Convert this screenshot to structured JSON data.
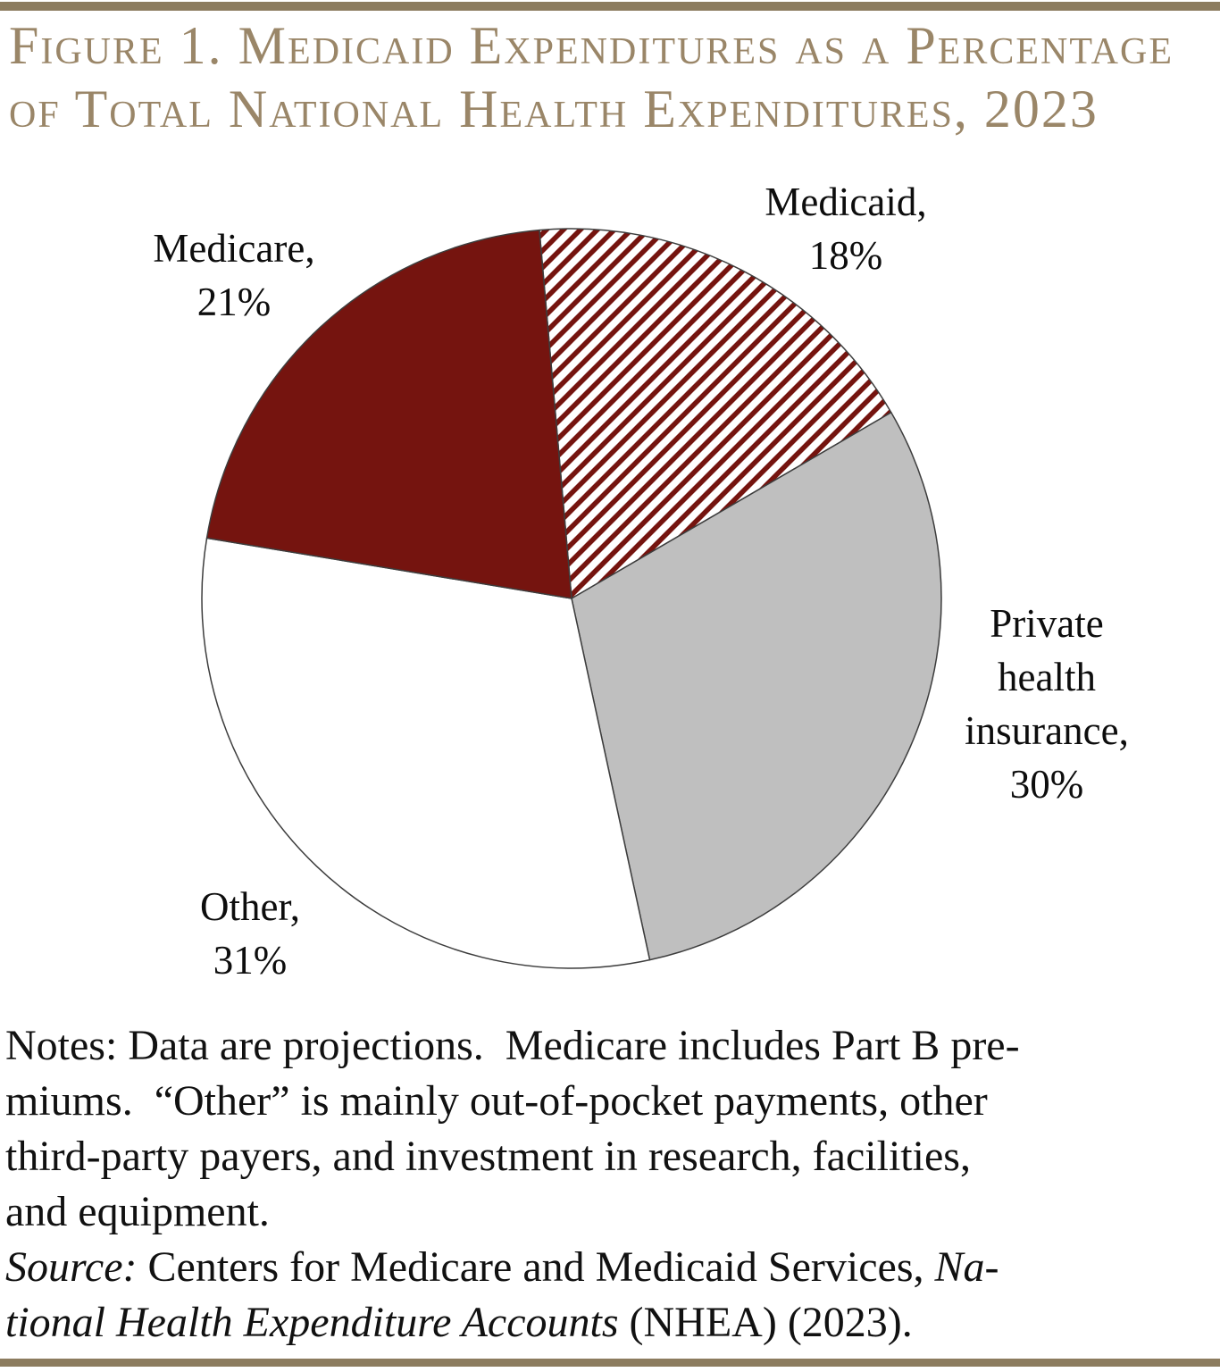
{
  "page": {
    "top_bar_color": "#8c7c5f",
    "bottom_bar_color": "#8c7c5f",
    "background_color": "#ffffff"
  },
  "title": {
    "text": "Figure 1. Medicaid Expenditures as a Percentage of Total National Health Expenditures, 2023",
    "lines": [
      "Figure 1. Medicaid Expenditures as a Percentage",
      "of Total National Health Expenditures, 2023"
    ],
    "color": "#9a8668"
  },
  "chart_data": {
    "type": "pie",
    "title": "Figure 1. Medicaid Expenditures as a Percentage of Total National Health Expenditures, 2023",
    "categories": [
      "Medicaid",
      "Private health insurance",
      "Other",
      "Medicare"
    ],
    "values": [
      18,
      30,
      31,
      21
    ],
    "unit": "percent",
    "direction": "clockwise",
    "start_angle_deg": -5,
    "legend": "none",
    "labels_position": "outside",
    "outline_color": "#3d3d3d",
    "slices": [
      {
        "name": "Medicaid",
        "value": 18,
        "fill": "hatch",
        "hatch_color": "#75140f",
        "hatch_background": "#ffffff",
        "hatch_style": "diagonal-forward",
        "label": "Medicaid,\n18%"
      },
      {
        "name": "Private health insurance",
        "value": 30,
        "fill": "#bfbfbf",
        "label": "Private\nhealth\ninsurance,\n30%"
      },
      {
        "name": "Other",
        "value": 31,
        "fill": "#ffffff",
        "label": "Other,\n31%"
      },
      {
        "name": "Medicare",
        "value": 21,
        "fill": "#75140f",
        "label": "Medicare,\n21%"
      }
    ]
  },
  "notes": {
    "lines": [
      [
        {
          "t": "Notes: Data are projections.  Medicare includes Part B pre-",
          "i": false
        }
      ],
      [
        {
          "t": "miums.  “Other” is mainly out-of-pocket payments, other",
          "i": false
        }
      ],
      [
        {
          "t": "third-party payers, and investment in research, facilities,",
          "i": false
        }
      ],
      [
        {
          "t": "and equipment.",
          "i": false
        }
      ],
      [
        {
          "t": "Source:",
          "i": true
        },
        {
          "t": " Centers for Medicare and Medicaid Services, ",
          "i": false
        },
        {
          "t": "Na-",
          "i": true
        }
      ],
      [
        {
          "t": "tional Health Expenditure Accounts",
          "i": true
        },
        {
          "t": " (NHEA) (2023).",
          "i": false
        }
      ]
    ]
  }
}
